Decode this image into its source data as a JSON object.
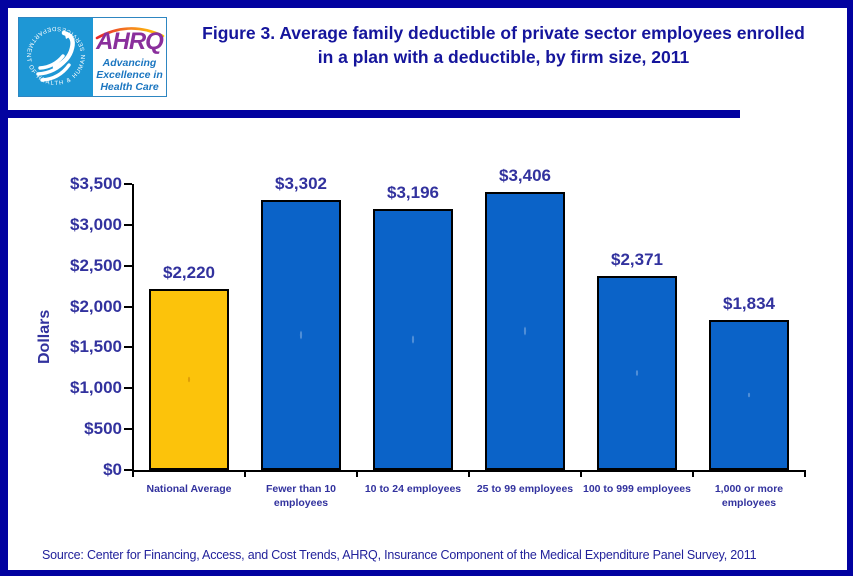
{
  "header": {
    "title": "Figure 3. Average family deductible of private sector employees enrolled in a plan with a deductible, by firm size, 2011",
    "logo": {
      "hhs_seal_text": "DEPARTMENT OF HEALTH & HUMAN SERVICES · USA",
      "ahrq_acronym": "AHRQ",
      "tagline": "Advancing Excellence in Health Care"
    }
  },
  "chart_data": {
    "type": "bar",
    "title": "Figure 3. Average family deductible of private sector employees enrolled in a plan with a deductible, by firm size, 2011",
    "xlabel": "",
    "ylabel": "Dollars",
    "ylim": [
      0,
      3500
    ],
    "ytick_step": 500,
    "ytick_labels": [
      "$0",
      "$500",
      "$1,000",
      "$1,500",
      "$2,000",
      "$2,500",
      "$3,000",
      "$3,500"
    ],
    "categories": [
      "National Average",
      "Fewer than 10 employees",
      "10 to 24 employees",
      "25 to 99 employees",
      "100 to 999 employees",
      "1,000 or more employees"
    ],
    "values": [
      2220,
      3302,
      3196,
      3406,
      2371,
      1834
    ],
    "value_labels": [
      "$2,220",
      "$3,302",
      "$3,196",
      "$3,406",
      "$2,371",
      "$1,834"
    ],
    "bar_colors": [
      "#fcc30b",
      "#0b63c8",
      "#0b63c8",
      "#0b63c8",
      "#0b63c8",
      "#0b63c8"
    ],
    "grid": false,
    "legend": false
  },
  "footer": {
    "source": "Source: Center for Financing, Access, and Cost Trends, AHRQ, Insurance Component of the Medical Expenditure Panel Survey, 2011"
  },
  "colors": {
    "border_navy": "#0202a0",
    "title_navy": "#15159c",
    "label_navy": "#32329e",
    "bar_blue": "#0b63c8",
    "national_average_gold": "#fcc30b",
    "hhs_logo_blue": "#1e97d5",
    "ahrq_purple": "#8a2f9c",
    "tagline_blue": "#1b76c0"
  }
}
